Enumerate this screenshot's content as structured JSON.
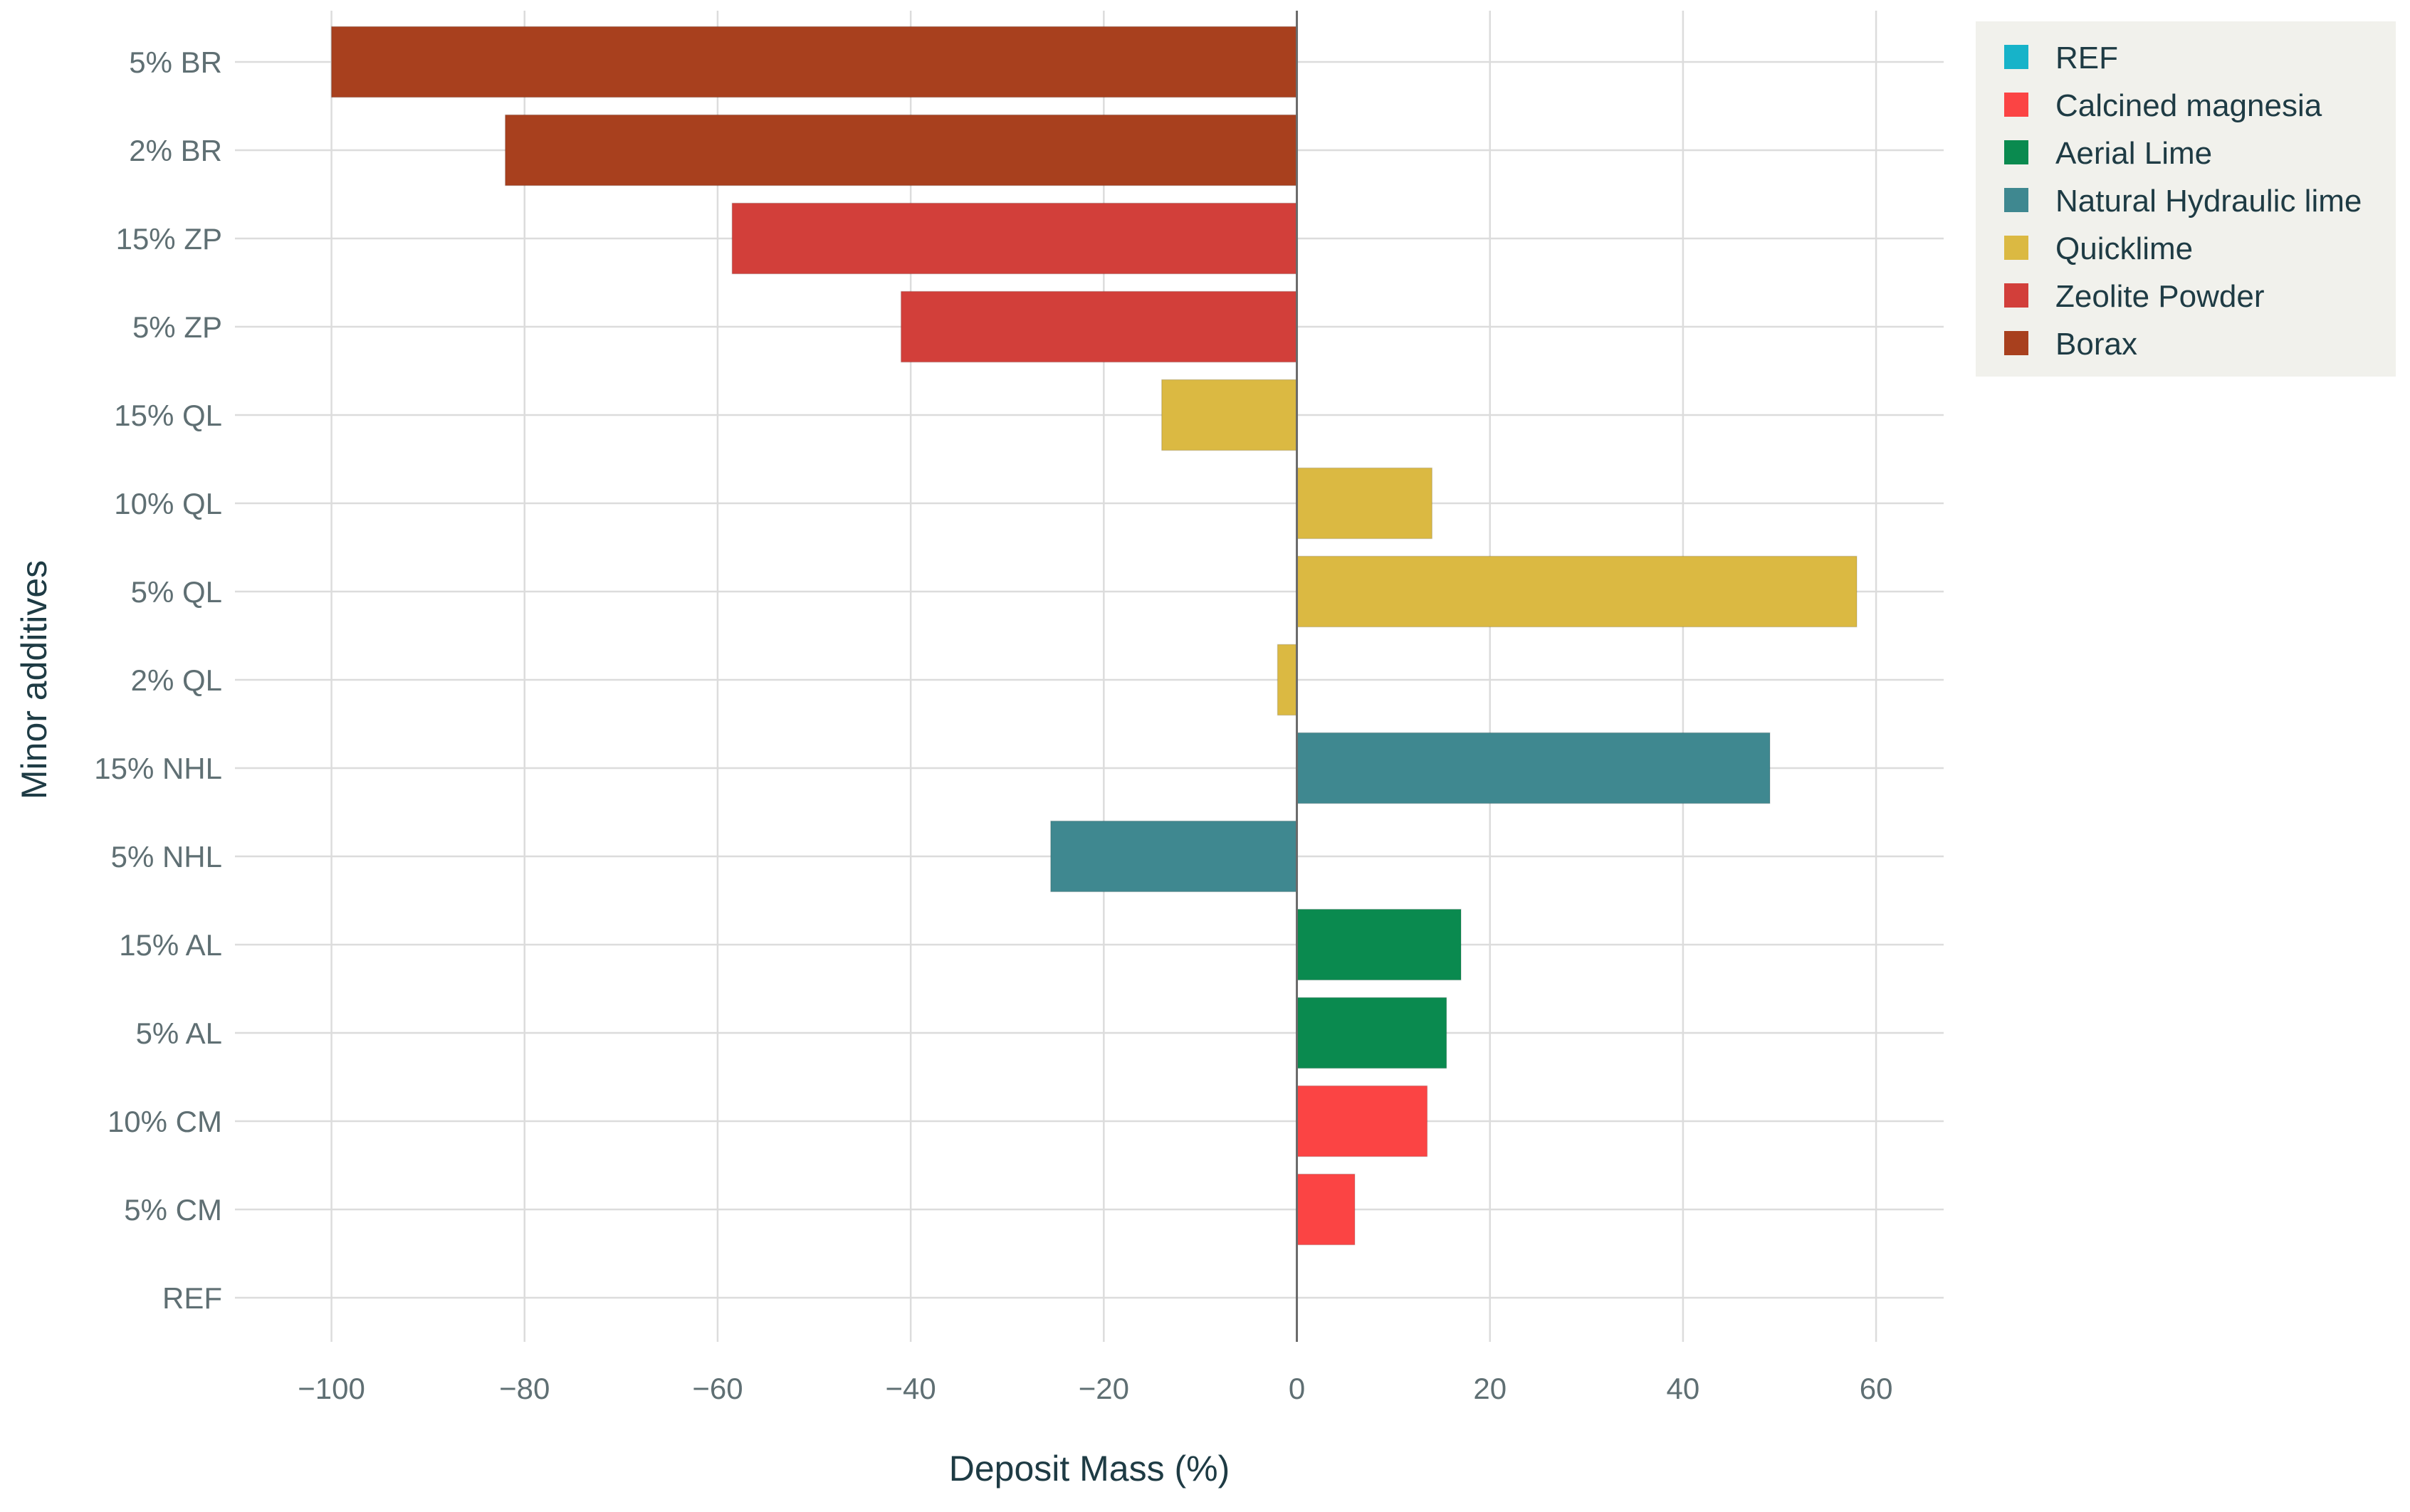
{
  "chart_data": {
    "type": "bar",
    "orientation": "horizontal",
    "title": "",
    "xlabel": "Deposit Mass (%)",
    "ylabel": "Minor additives",
    "xlim": [
      -110,
      67
    ],
    "xticks": [
      -100,
      -80,
      -60,
      -40,
      -20,
      0,
      20,
      40,
      60
    ],
    "xtick_labels": [
      "−100",
      "−80",
      "−60",
      "−40",
      "−20",
      "0",
      "20",
      "40",
      "60"
    ],
    "grid": true,
    "legend_position": "top-right",
    "categories": [
      "5% BR",
      "2% BR",
      "15% ZP",
      "5% ZP",
      "15% QL",
      "10% QL",
      "5% QL",
      "2% QL",
      "15% NHL",
      "5% NHL",
      "15% AL",
      "5% AL",
      "10% CM",
      "5% CM",
      "REF"
    ],
    "values": [
      -100,
      -82,
      -58.5,
      -41,
      -14,
      14,
      58,
      -2,
      49,
      -25.5,
      17,
      15.5,
      13.5,
      6,
      0
    ],
    "groups": [
      "Borax",
      "Borax",
      "Zeolite Powder",
      "Zeolite Powder",
      "Quicklime",
      "Quicklime",
      "Quicklime",
      "Quicklime",
      "Natural Hydraulic lime",
      "Natural Hydraulic lime",
      "Aerial Lime",
      "Aerial Lime",
      "Calcined magnesia",
      "Calcined magnesia",
      "REF"
    ],
    "legend": [
      {
        "name": "REF",
        "color": "#17b3c9"
      },
      {
        "name": "Calcined magnesia",
        "color": "#fb4444"
      },
      {
        "name": "Aerial Lime",
        "color": "#0a8a4f"
      },
      {
        "name": "Natural Hydraulic lime",
        "color": "#3f8890"
      },
      {
        "name": "Quicklime",
        "color": "#dbb942"
      },
      {
        "name": "Zeolite Powder",
        "color": "#d23f3a"
      },
      {
        "name": "Borax",
        "color": "#a8401e"
      }
    ]
  }
}
